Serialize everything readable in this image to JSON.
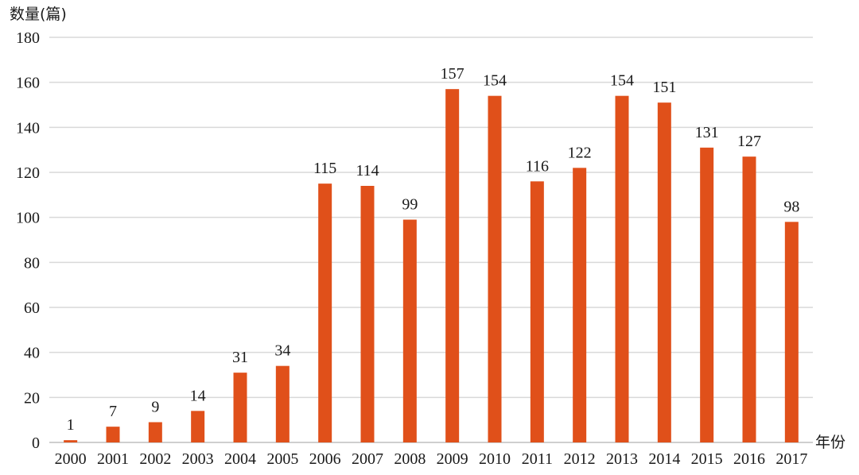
{
  "chart_data": {
    "type": "bar",
    "title": "",
    "xlabel": "年份",
    "ylabel": "数量(篇)",
    "ylim": [
      0,
      180
    ],
    "y_ticks": [
      0,
      20,
      40,
      60,
      80,
      100,
      120,
      140,
      160,
      180
    ],
    "categories": [
      "2000",
      "2001",
      "2002",
      "2003",
      "2004",
      "2005",
      "2006",
      "2007",
      "2008",
      "2009",
      "2010",
      "2011",
      "2012",
      "2013",
      "2014",
      "2015",
      "2016",
      "2017"
    ],
    "values": [
      1,
      7,
      9,
      14,
      31,
      34,
      115,
      114,
      99,
      157,
      154,
      116,
      122,
      154,
      151,
      131,
      127,
      98
    ],
    "data_labels": [
      "1",
      "7",
      "9",
      "14",
      "31",
      "34",
      "115",
      "114",
      "99",
      "157",
      "154",
      "116",
      "122",
      "154",
      "151",
      "131",
      "127",
      "98"
    ],
    "grid": true,
    "legend": "none",
    "bar_color": "#e0501a",
    "grid_color": "#d9d9d9",
    "axis_color": "#bfbfbf"
  }
}
